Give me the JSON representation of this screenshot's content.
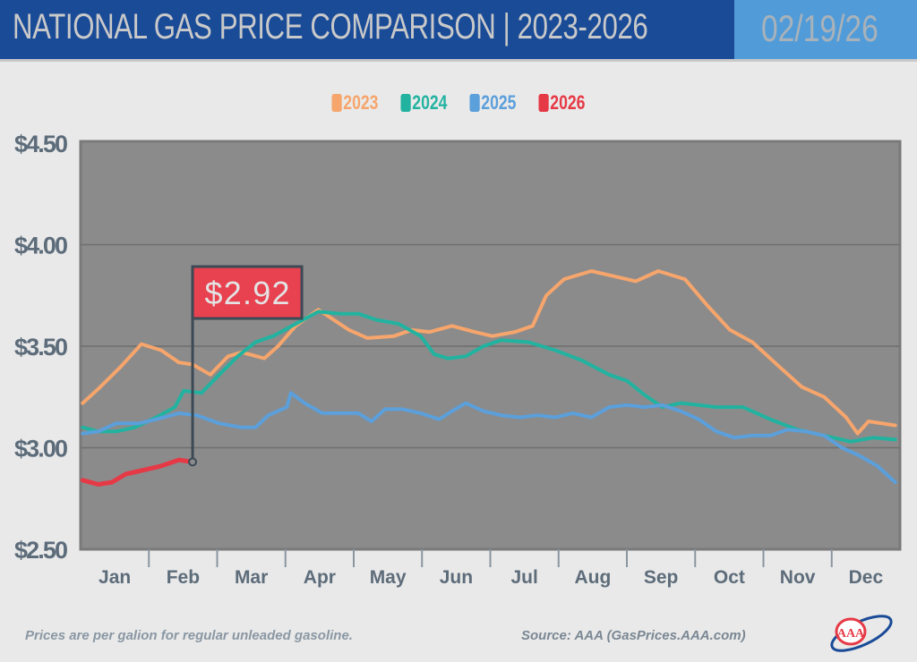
{
  "header": {
    "title": "NATIONAL GAS PRICE COMPARISON | 2023-2026",
    "date": "02/19/26"
  },
  "footer": {
    "note": "Prices are per galion for regular unleaded gasoline.",
    "source": "Source: AAA (GasPrices.AAA.com)",
    "logo_text": "AAA"
  },
  "chart_data": {
    "type": "line",
    "title": "NATIONAL GAS PRICE COMPARISON | 2023-2026",
    "ylim": [
      2.5,
      4.5
    ],
    "yticks": [
      "$2.50",
      "$3.00",
      "$3.50",
      "$4.00",
      "$4.50"
    ],
    "ytick_values": [
      2.5,
      3.0,
      3.5,
      4.0,
      4.5
    ],
    "categories": [
      "Jan",
      "Feb",
      "Mar",
      "Apr",
      "May",
      "Jun",
      "Jul",
      "Aug",
      "Sep",
      "Oct",
      "Nov",
      "Dec"
    ],
    "grid": true,
    "legend": "top-center",
    "callout": {
      "label": "$2.92",
      "series": "2026",
      "color": "#e8414f"
    },
    "series": [
      {
        "name": "2023",
        "color": "#f6a56c",
        "x": [
          0.03,
          0.26,
          0.59,
          0.89,
          1.18,
          1.44,
          1.64,
          1.9,
          2.16,
          2.36,
          2.69,
          2.89,
          3.15,
          3.48,
          3.93,
          4.2,
          4.59,
          4.85,
          5.11,
          5.44,
          5.77,
          6.03,
          6.36,
          6.62,
          6.82,
          7.08,
          7.48,
          7.87,
          8.13,
          8.46,
          8.85,
          9.18,
          9.51,
          9.84,
          10.23,
          10.56,
          10.89,
          11.21,
          11.38,
          11.54,
          11.93
        ],
        "y": [
          3.22,
          3.29,
          3.4,
          3.51,
          3.48,
          3.42,
          3.41,
          3.36,
          3.45,
          3.47,
          3.44,
          3.5,
          3.6,
          3.68,
          3.58,
          3.54,
          3.55,
          3.58,
          3.57,
          3.6,
          3.57,
          3.55,
          3.57,
          3.6,
          3.75,
          3.83,
          3.87,
          3.84,
          3.82,
          3.87,
          3.83,
          3.7,
          3.58,
          3.52,
          3.4,
          3.3,
          3.25,
          3.15,
          3.07,
          3.13,
          3.11
        ]
      },
      {
        "name": "2024",
        "color": "#22b3a0",
        "x": [
          0.03,
          0.26,
          0.52,
          0.79,
          1.11,
          1.38,
          1.51,
          1.77,
          2.03,
          2.3,
          2.56,
          2.82,
          3.15,
          3.48,
          3.8,
          4.07,
          4.33,
          4.66,
          4.98,
          5.18,
          5.38,
          5.64,
          5.9,
          6.16,
          6.56,
          6.95,
          7.34,
          7.74,
          8.0,
          8.26,
          8.52,
          8.79,
          9.05,
          9.31,
          9.7,
          10.1,
          10.49,
          10.89,
          11.28,
          11.61,
          11.93
        ],
        "y": [
          3.1,
          3.08,
          3.08,
          3.1,
          3.15,
          3.2,
          3.28,
          3.27,
          3.36,
          3.45,
          3.52,
          3.55,
          3.61,
          3.67,
          3.66,
          3.66,
          3.63,
          3.61,
          3.55,
          3.46,
          3.44,
          3.45,
          3.5,
          3.53,
          3.52,
          3.48,
          3.43,
          3.36,
          3.33,
          3.26,
          3.2,
          3.22,
          3.21,
          3.2,
          3.2,
          3.14,
          3.09,
          3.06,
          3.03,
          3.05,
          3.04
        ]
      },
      {
        "name": "2025",
        "color": "#5b9fdb",
        "x": [
          0.03,
          0.26,
          0.52,
          0.85,
          1.11,
          1.44,
          1.7,
          2.03,
          2.36,
          2.56,
          2.75,
          3.02,
          3.08,
          3.28,
          3.54,
          3.8,
          4.07,
          4.26,
          4.46,
          4.72,
          4.98,
          5.25,
          5.44,
          5.64,
          5.9,
          6.16,
          6.43,
          6.69,
          6.95,
          7.21,
          7.48,
          7.74,
          8.0,
          8.26,
          8.52,
          8.79,
          9.05,
          9.31,
          9.57,
          9.84,
          10.1,
          10.36,
          10.62,
          10.89,
          11.15,
          11.41,
          11.67,
          11.93
        ],
        "y": [
          3.07,
          3.08,
          3.12,
          3.12,
          3.14,
          3.17,
          3.16,
          3.12,
          3.1,
          3.1,
          3.16,
          3.2,
          3.27,
          3.22,
          3.17,
          3.17,
          3.17,
          3.13,
          3.19,
          3.19,
          3.17,
          3.14,
          3.18,
          3.22,
          3.18,
          3.16,
          3.15,
          3.16,
          3.15,
          3.17,
          3.15,
          3.2,
          3.21,
          3.2,
          3.21,
          3.18,
          3.14,
          3.08,
          3.05,
          3.06,
          3.06,
          3.09,
          3.08,
          3.06,
          3.0,
          2.96,
          2.91,
          2.83
        ]
      },
      {
        "name": "2026",
        "color": "#e63946",
        "x": [
          0.03,
          0.26,
          0.46,
          0.66,
          0.92,
          1.18,
          1.44,
          1.64
        ],
        "y": [
          2.84,
          2.82,
          2.83,
          2.87,
          2.89,
          2.91,
          2.94,
          2.93
        ]
      }
    ]
  }
}
